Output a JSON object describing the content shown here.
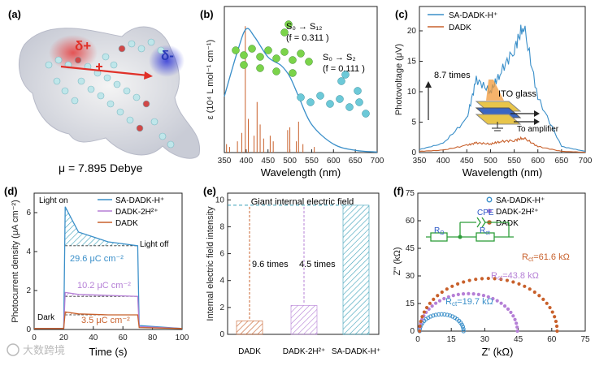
{
  "panels": {
    "a": {
      "label": "(a)",
      "delta_plus": "δ+",
      "delta_minus": "δ-",
      "dipole": "μ =  7.895 Debye"
    },
    "b": {
      "label": "(b)",
      "ylabel": "ε (10⁴ L mol⁻¹ cm⁻¹)",
      "xlabel": "Wavelength (nm)",
      "annot1": "S₀ → S₁₂",
      "annot1_f": "(f = 0.311 )",
      "annot2": "S₀ → S₂",
      "annot2_f": "(f = 0.111 )",
      "xticks": [
        "350",
        "400",
        "450",
        "500",
        "550",
        "600",
        "650",
        "700"
      ]
    },
    "c": {
      "label": "(c)",
      "ylabel": "Photovoltage (μV)",
      "xlabel": "Wavelength (nm)",
      "legend": [
        "SA-DADK-H⁺",
        "DADK"
      ],
      "times": "8.7 times",
      "ito": "ITO glass",
      "amp": "To amplifier",
      "xticks": [
        "350",
        "400",
        "450",
        "500",
        "550",
        "600",
        "650",
        "700"
      ],
      "yticks": [
        "0",
        "5",
        "10",
        "15",
        "20"
      ]
    },
    "d": {
      "label": "(d)",
      "ylabel": "Photocurrent density (μA cm⁻²)",
      "xlabel": "Time (s)",
      "legend": [
        "SA-DADK-H⁺",
        "DADK-2H²⁺",
        "DADK"
      ],
      "light_on": "Light on",
      "light_off": "Light off",
      "dark": "Dark",
      "q1": "29.6 μC cm⁻²",
      "q2": "10.2 μC cm⁻²",
      "q3": "3.5 μC cm⁻²",
      "xticks": [
        "0",
        "20",
        "40",
        "60",
        "80",
        "100"
      ],
      "yticks": [
        "0",
        "2",
        "4",
        "6"
      ]
    },
    "e": {
      "label": "(e)",
      "ylabel": "Internal electric  field intensity",
      "title": "Giant internal electric field",
      "t1": "9.6 times",
      "t2": "4.5 times",
      "cats": [
        "DADK",
        "DADK-2H²⁺",
        "SA-DADK-H⁺"
      ],
      "yticks": [
        "0",
        "2",
        "4",
        "6",
        "8",
        "10"
      ]
    },
    "f": {
      "label": "(f)",
      "ylabel": "Z'' (kΩ)",
      "xlabel": "Z' (kΩ)",
      "legend": [
        "SA-DADK-H⁺",
        "DADK-2H²⁺",
        "DADK"
      ],
      "cpe": "CPE",
      "rs": "R",
      "rs_sub": "Ω",
      "rct": "R",
      "rct_sub": "ct",
      "r1": "R",
      "r1_sub": "ct",
      "r1_val": "=61.6 kΩ",
      "r2": "R",
      "r2_sub": "ct",
      "r2_val": "=43.8 kΩ",
      "r3": "R",
      "r3_sub": "ct",
      "r3_val": "=19.7 kΩ",
      "xticks": [
        "0",
        "15",
        "30",
        "45",
        "60",
        "75"
      ],
      "yticks": [
        "0",
        "15",
        "30",
        "45",
        "60",
        "75"
      ]
    }
  },
  "watermark": "大数跨境",
  "colors": {
    "blue": "#3a8fc9",
    "orange": "#c8602b",
    "purple": "#b57fd6"
  },
  "chart_data": [
    {
      "type": "line",
      "panel": "b",
      "x": [
        350,
        380,
        400,
        420,
        450,
        480,
        500,
        520,
        550,
        600,
        650,
        700
      ],
      "series": [
        {
          "values": [
            2.0,
            3.6,
            4.4,
            4.1,
            3.4,
            3.1,
            2.7,
            2.0,
            1.0,
            0.3,
            0.08,
            0.02
          ]
        }
      ],
      "xlim": [
        350,
        700
      ]
    },
    {
      "type": "line",
      "panel": "c",
      "x": [
        350,
        400,
        450,
        470,
        500,
        520,
        550,
        570,
        600,
        650,
        700
      ],
      "series": [
        {
          "name": "SA-DADK-H⁺",
          "values": [
            0.5,
            1.5,
            5.5,
            12,
            10,
            13,
            17,
            21,
            9,
            1,
            0.2
          ]
        },
        {
          "name": "DADK",
          "values": [
            0.2,
            0.4,
            1.2,
            1.6,
            1.4,
            1.8,
            2.0,
            2.4,
            1.0,
            0.2,
            0.05
          ]
        }
      ],
      "xlim": [
        350,
        700
      ],
      "ylim": [
        0,
        24
      ]
    },
    {
      "type": "line",
      "panel": "d",
      "x": [
        0,
        20,
        21,
        30,
        50,
        70,
        71,
        100
      ],
      "series": [
        {
          "name": "SA-DADK-H⁺",
          "values": [
            0.05,
            0.05,
            6.3,
            5.0,
            4.5,
            4.3,
            0.2,
            0.05
          ]
        },
        {
          "name": "DADK-2H²⁺",
          "values": [
            0.05,
            0.05,
            1.9,
            1.8,
            1.75,
            1.7,
            0.15,
            0.05
          ]
        },
        {
          "name": "DADK",
          "values": [
            0.05,
            0.05,
            0.9,
            0.8,
            0.75,
            0.75,
            0.1,
            0.05
          ]
        }
      ],
      "xlim": [
        0,
        100
      ],
      "ylim": [
        0,
        7
      ]
    },
    {
      "type": "bar",
      "panel": "e",
      "categories": [
        "DADK",
        "DADK-2H²⁺",
        "SA-DADK-H⁺"
      ],
      "values": [
        1.0,
        2.15,
        9.6
      ],
      "ylim": [
        0,
        10.5
      ]
    },
    {
      "type": "scatter",
      "panel": "f",
      "series": [
        {
          "name": "SA-DADK-H⁺",
          "Rct": 19.7
        },
        {
          "name": "DADK-2H²⁺",
          "Rct": 43.8
        },
        {
          "name": "DADK",
          "Rct": 61.6
        }
      ],
      "xlim": [
        0,
        75
      ],
      "ylim": [
        0,
        75
      ]
    }
  ]
}
